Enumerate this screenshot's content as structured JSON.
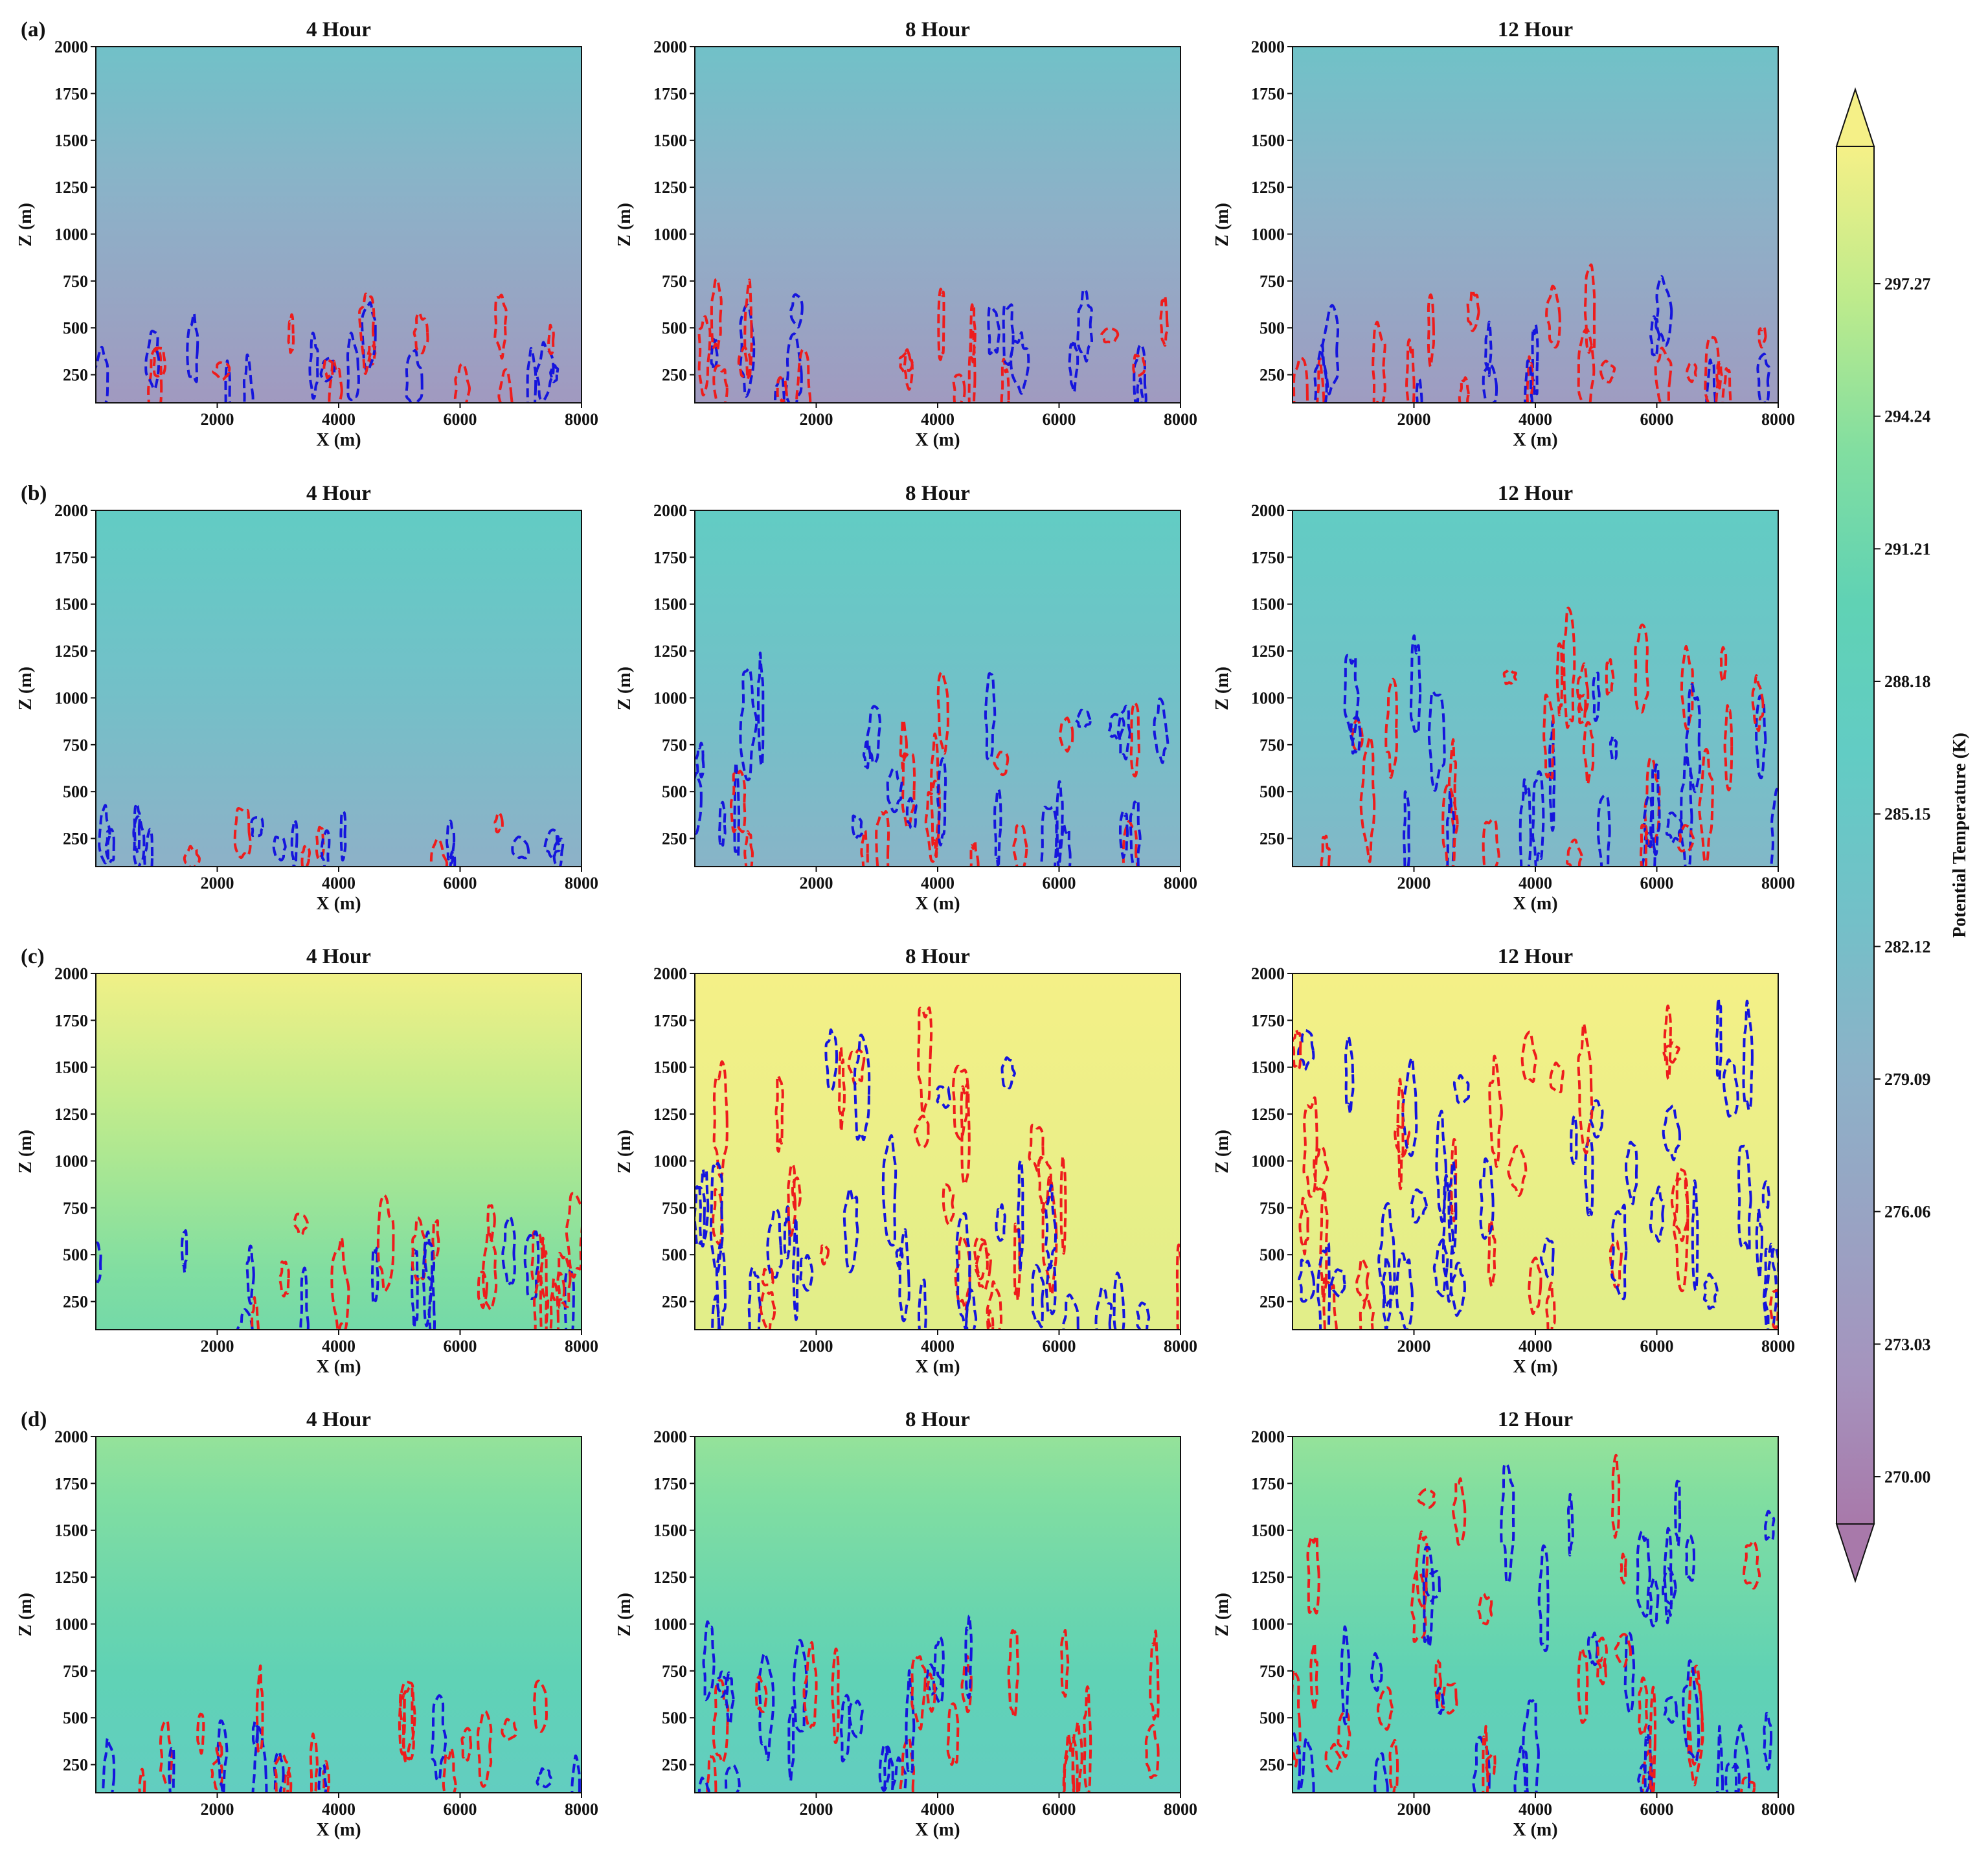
{
  "chart_data": {
    "type": "heatmap",
    "xlabel": "X (m)",
    "ylabel": "Z (m)",
    "xlim": [
      0,
      8000
    ],
    "ylim": [
      100,
      2000
    ],
    "x_ticks": [
      "2000",
      "4000",
      "6000",
      "8000"
    ],
    "y_ticks": [
      "250",
      "500",
      "750",
      "1000",
      "1250",
      "1500",
      "1750",
      "2000"
    ],
    "column_titles": [
      "4 Hour",
      "8 Hour",
      "12 Hour"
    ],
    "row_labels": [
      "(a)",
      "(b)",
      "(c)",
      "(d)"
    ],
    "colorbar": {
      "label": "Potential Temperature (K)",
      "min": 270.0,
      "max": 297.27,
      "extend": "both",
      "ticks": [
        "270.00",
        "273.03",
        "276.06",
        "279.09",
        "282.12",
        "285.15",
        "288.18",
        "291.21",
        "294.24",
        "297.27"
      ]
    },
    "contour_colors": {
      "positive": "#ee1c1c",
      "negative": "#1515dd"
    },
    "panels": [
      {
        "row": "(a)",
        "time": "4 Hour",
        "theta_bottom_K": 274.0,
        "theta_top_K": 282.4,
        "contour_top_m": 600
      },
      {
        "row": "(a)",
        "time": "8 Hour",
        "theta_bottom_K": 274.2,
        "theta_top_K": 282.4,
        "contour_top_m": 700
      },
      {
        "row": "(a)",
        "time": "12 Hour",
        "theta_bottom_K": 274.5,
        "theta_top_K": 282.5,
        "contour_top_m": 730
      },
      {
        "row": "(b)",
        "time": "4 Hour",
        "theta_bottom_K": 278.8,
        "theta_top_K": 285.3,
        "contour_top_m": 390
      },
      {
        "row": "(b)",
        "time": "8 Hour",
        "theta_bottom_K": 279.5,
        "theta_top_K": 285.3,
        "contour_top_m": 1100
      },
      {
        "row": "(b)",
        "time": "12 Hour",
        "theta_bottom_K": 280.2,
        "theta_top_K": 285.3,
        "contour_top_m": 1380
      },
      {
        "row": "(c)",
        "time": "4 Hour",
        "theta_bottom_K": 290.0,
        "theta_top_K": 297.0,
        "contour_top_m": 780
      },
      {
        "row": "(c)",
        "time": "8 Hour",
        "theta_bottom_K": 296.2,
        "theta_top_K": 297.2,
        "contour_top_m": 1850
      },
      {
        "row": "(c)",
        "time": "12 Hour",
        "theta_bottom_K": 296.2,
        "theta_top_K": 297.2,
        "contour_top_m": 2000
      },
      {
        "row": "(d)",
        "time": "4 Hour",
        "theta_bottom_K": 286.0,
        "theta_top_K": 292.2,
        "contour_top_m": 660
      },
      {
        "row": "(d)",
        "time": "8 Hour",
        "theta_bottom_K": 286.0,
        "theta_top_K": 292.2,
        "contour_top_m": 960
      },
      {
        "row": "(d)",
        "time": "12 Hour",
        "theta_bottom_K": 286.3,
        "theta_top_K": 292.2,
        "contour_top_m": 2000
      }
    ]
  }
}
